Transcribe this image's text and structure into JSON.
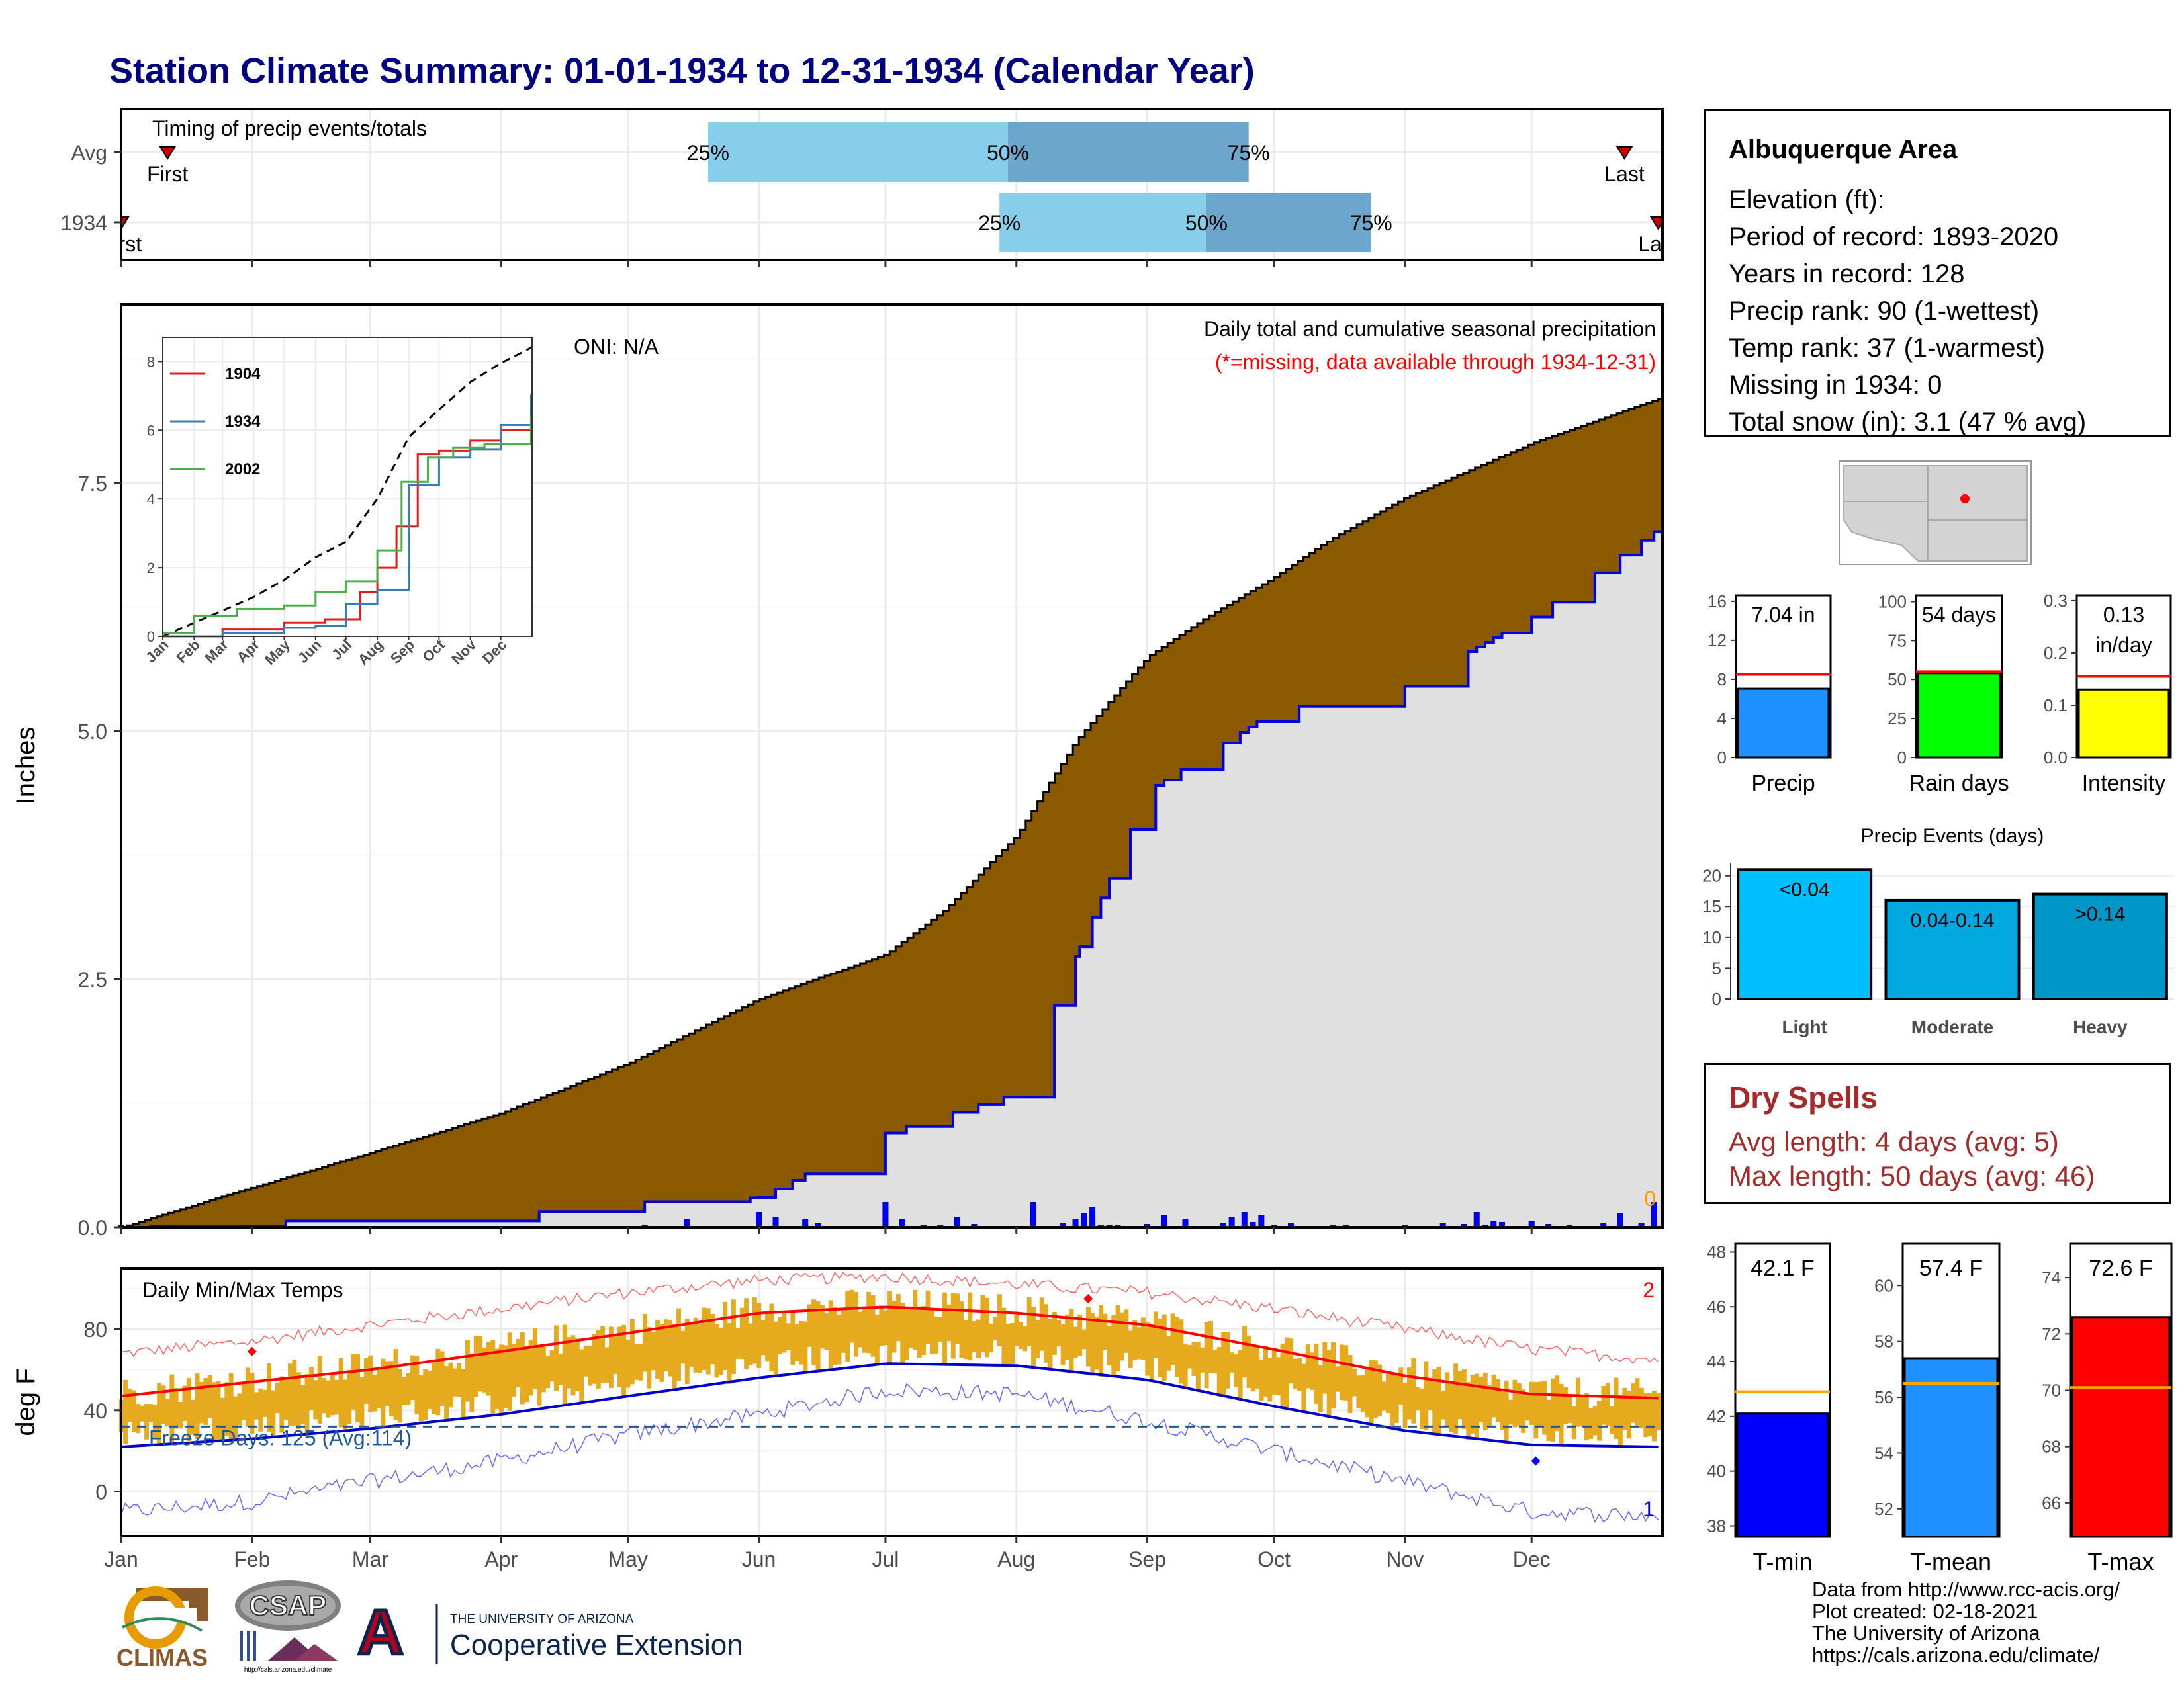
{
  "title": "Station Climate Summary: 01-01-1934 to 12-31-1934 (Calendar Year)",
  "months": [
    "Jan",
    "Feb",
    "Mar",
    "Apr",
    "May",
    "Jun",
    "Jul",
    "Aug",
    "Sep",
    "Oct",
    "Nov",
    "Dec"
  ],
  "timing": {
    "label": "Timing of precip events/totals",
    "rows": [
      "Avg",
      "1934"
    ],
    "avg": {
      "first_label": "First",
      "last_label": "Last",
      "p25": "25%",
      "p50": "50%",
      "p75": "75%",
      "first_date": "1934-01-12",
      "last_date": "1934-12-23",
      "p25_date": "1934-05-20",
      "p50_date": "1934-07-30",
      "p75_date": "1934-09-25"
    },
    "year": {
      "first_label": "First",
      "last_label": "Last",
      "p25": "25%",
      "p50": "50%",
      "p75": "75%",
      "first_date": "1934-01-01",
      "last_date": "1934-12-31",
      "p25_date": "1934-07-28",
      "p50_date": "1934-09-15",
      "p75_date": "1934-10-24"
    }
  },
  "precip_panel": {
    "ylabel": "Inches",
    "yticks": [
      "0.0",
      "2.5",
      "5.0",
      "7.5"
    ],
    "oni": "ONI: N/A",
    "legend_line1": "Daily total and cumulative seasonal precipitation",
    "legend_line2": "(*=missing, data available through 1934-12-31)",
    "missing_count": "0"
  },
  "inset": {
    "yticks": [
      "0",
      "2",
      "4",
      "6",
      "8"
    ],
    "xticks": [
      "Jan",
      "Feb",
      "Mar",
      "Apr",
      "May",
      "Jun",
      "Jul",
      "Aug",
      "Sep",
      "Oct",
      "Nov",
      "Dec"
    ],
    "legend": [
      "1904",
      "1934",
      "2002"
    ]
  },
  "temp_panel": {
    "ylabel": "deg F",
    "yticks": [
      "0",
      "40",
      "80"
    ],
    "title": "Daily Min/Max Temps",
    "freeze": "Freeze Days: 125 (Avg:114)",
    "record_high_count": "2",
    "record_low_count": "1"
  },
  "info": {
    "title": "Albuquerque Area",
    "lines": [
      "Elevation (ft):",
      "Period of record: 1893-2020",
      "Years in record: 128",
      "Precip rank: 90 (1-wettest)",
      "Temp rank: 37 (1-warmest)",
      "Missing in 1934: 0",
      "Total snow (in): 3.1 (47 % avg)"
    ]
  },
  "summary_bars": [
    {
      "name": "Precip",
      "value_label": "7.04 in",
      "yticks": [
        "0",
        "4",
        "8",
        "12",
        "16"
      ],
      "value": 7.04,
      "avg": 8.5,
      "max": 16.6,
      "color": "#1e90ff"
    },
    {
      "name": "Rain days",
      "value_label": "54 days",
      "yticks": [
        "0",
        "25",
        "50",
        "75",
        "100"
      ],
      "value": 54,
      "avg": 55,
      "max": 104,
      "color": "#00ff00"
    },
    {
      "name": "Intensity",
      "value_label": "0.13",
      "value_label2": "in/day",
      "yticks": [
        "0.0",
        "0.1",
        "0.2",
        "0.3"
      ],
      "value": 0.13,
      "avg": 0.155,
      "max": 0.31,
      "color": "#ffff00"
    }
  ],
  "precip_events": {
    "title": "Precip Events (days)",
    "categories": [
      "Light",
      "Moderate",
      "Heavy"
    ],
    "labels": [
      "<0.04",
      "0.04-0.14",
      ">0.14"
    ],
    "values": [
      21,
      16,
      17
    ],
    "yticks": [
      "0",
      "5",
      "10",
      "15",
      "20"
    ],
    "colors": [
      "#00bfff",
      "#00a8e0",
      "#0096c8"
    ]
  },
  "dry_spells": {
    "title": "Dry Spells",
    "line1": "Avg length: 4 days (avg: 5)",
    "line2": "Max length: 50 days (avg: 46)"
  },
  "temp_bars": [
    {
      "name": "T-min",
      "value_label": "42.1 F",
      "yticks": [
        "38",
        "40",
        "42",
        "44",
        "46",
        "48"
      ],
      "ylim": [
        37.6,
        48.3
      ],
      "value": 42.1,
      "avg": 42.9,
      "color": "#0000ff"
    },
    {
      "name": "T-mean",
      "value_label": "57.4 F",
      "yticks": [
        "52",
        "54",
        "56",
        "58",
        "60"
      ],
      "ylim": [
        51.0,
        61.5
      ],
      "value": 57.4,
      "avg": 56.5,
      "color": "#1e90ff"
    },
    {
      "name": "T-max",
      "value_label": "72.6 F",
      "yticks": [
        "66",
        "68",
        "70",
        "72",
        "74"
      ],
      "ylim": [
        64.8,
        75.2
      ],
      "value": 72.6,
      "avg": 70.1,
      "color": "#ff0000"
    }
  ],
  "credits": [
    "Data from http://www.rcc-acis.org/",
    "Plot created: 02-18-2021",
    "The University of Arizona",
    "https://cals.arizona.edu/climate/"
  ],
  "logos": {
    "climas": "CLIMAS",
    "csap": "CSAP",
    "csap_url": "http://cals.arizona.edu/climate",
    "ua_line1": "THE UNIVERSITY OF ARIZONA",
    "ua_line2": "Cooperative Extension",
    "ua_letter": "A"
  },
  "chart_data": [
    {
      "type": "area",
      "name": "cumulative precip",
      "xlabel": "",
      "ylabel": "Inches",
      "ylim": [
        0,
        9.3
      ],
      "avg_cumulative": {
        "x": [
          "1934-01-01",
          "1934-02-01",
          "1934-03-01",
          "1934-04-01",
          "1934-05-01",
          "1934-06-01",
          "1934-07-01",
          "1934-07-15",
          "1934-08-01",
          "1934-08-15",
          "1934-09-01",
          "1934-09-15",
          "1934-10-01",
          "1934-10-15",
          "1934-11-01",
          "1934-12-01",
          "1934-12-31"
        ],
        "y": [
          0,
          0.4,
          0.75,
          1.15,
          1.65,
          2.3,
          2.75,
          3.2,
          3.95,
          4.9,
          5.75,
          6.15,
          6.55,
          6.95,
          7.35,
          7.9,
          8.35
        ]
      },
      "year_cumulative": {
        "x": [
          "1934-01-01",
          "1934-02-01",
          "1934-03-01",
          "1934-04-01",
          "1934-05-01",
          "1934-06-01",
          "1934-07-01",
          "1934-08-01",
          "1934-09-01",
          "1934-10-01",
          "1934-11-01",
          "1934-12-01",
          "1934-12-31"
        ],
        "y": [
          0,
          0.05,
          0.1,
          0.12,
          0.25,
          0.3,
          0.95,
          1.35,
          4.4,
          5.2,
          5.45,
          6.15,
          7.04
        ]
      },
      "daily_precip": {
        "x": [
          "1934-01-01",
          "1934-02-05",
          "1934-03-05",
          "1934-04-05",
          "1934-05-05",
          "1934-05-15",
          "1934-06-01",
          "1934-06-05",
          "1934-06-12",
          "1934-06-15",
          "1934-07-01",
          "1934-07-05",
          "1934-07-10",
          "1934-07-14",
          "1934-07-18",
          "1934-07-22",
          "1934-07-27",
          "1934-08-05",
          "1934-08-12",
          "1934-08-15",
          "1934-08-17",
          "1934-08-19",
          "1934-08-21",
          "1934-08-23",
          "1934-08-25",
          "1934-09-01",
          "1934-09-05",
          "1934-09-10",
          "1934-09-19",
          "1934-09-21",
          "1934-09-24",
          "1934-09-26",
          "1934-09-28",
          "1934-10-01",
          "1934-10-05",
          "1934-10-15",
          "1934-10-18",
          "1934-11-01",
          "1934-11-10",
          "1934-11-15",
          "1934-11-18",
          "1934-11-20",
          "1934-11-22",
          "1934-11-24",
          "1934-12-01",
          "1934-12-05",
          "1934-12-10",
          "1934-12-18",
          "1934-12-22",
          "1934-12-27",
          "1934-12-30"
        ],
        "y": [
          0.02,
          0.02,
          0.01,
          0.01,
          0.02,
          0.08,
          0.15,
          0.1,
          0.08,
          0.04,
          0.25,
          0.08,
          0.02,
          0.02,
          0.1,
          0.03,
          0.01,
          0.25,
          0.04,
          0.08,
          0.14,
          0.2,
          0.02,
          0.02,
          0.02,
          0.03,
          0.12,
          0.08,
          0.04,
          0.1,
          0.15,
          0.05,
          0.12,
          0.02,
          0.04,
          0.02,
          0.02,
          0.02,
          0.04,
          0.03,
          0.15,
          0.02,
          0.06,
          0.05,
          0.06,
          0.03,
          0.02,
          0.04,
          0.14,
          0.04,
          0.25
        ]
      }
    },
    {
      "type": "line",
      "name": "inset cumulative comparison",
      "ylim": [
        0,
        8.7
      ],
      "series": [
        {
          "name": "avg",
          "x": [
            "1934-01-01",
            "1934-02-01",
            "1934-03-01",
            "1934-04-01",
            "1934-05-01",
            "1934-06-01",
            "1934-07-01",
            "1934-08-01",
            "1934-09-01",
            "1934-10-01",
            "1934-11-01",
            "1934-12-01",
            "1934-12-31"
          ],
          "y": [
            0,
            0.4,
            0.75,
            1.15,
            1.65,
            2.3,
            2.75,
            4.0,
            5.8,
            6.6,
            7.4,
            7.95,
            8.4
          ]
        },
        {
          "name": "1904",
          "x": [
            "1934-01-01",
            "1934-03-01",
            "1934-05-01",
            "1934-06-10",
            "1934-07-15",
            "1934-08-01",
            "1934-08-20",
            "1934-09-10",
            "1934-10-01",
            "1934-11-01",
            "1934-12-01",
            "1934-12-31"
          ],
          "y": [
            0,
            0.2,
            0.4,
            0.5,
            1.3,
            2.0,
            3.2,
            5.3,
            5.4,
            5.7,
            6.0,
            6.0
          ]
        },
        {
          "name": "1934",
          "x": [
            "1934-01-01",
            "1934-03-01",
            "1934-05-01",
            "1934-06-01",
            "1934-07-01",
            "1934-08-01",
            "1934-09-01",
            "1934-10-01",
            "1934-11-01",
            "1934-12-01",
            "1934-12-31"
          ],
          "y": [
            0,
            0.1,
            0.25,
            0.3,
            0.95,
            1.35,
            4.4,
            5.2,
            5.45,
            6.15,
            7.04
          ]
        },
        {
          "name": "2002",
          "x": [
            "1934-01-01",
            "1934-02-01",
            "1934-03-15",
            "1934-05-01",
            "1934-06-01",
            "1934-07-01",
            "1934-08-01",
            "1934-08-25",
            "1934-09-20",
            "1934-10-15",
            "1934-11-15",
            "1934-12-31"
          ],
          "y": [
            0.1,
            0.6,
            0.8,
            0.9,
            1.3,
            1.6,
            2.5,
            4.5,
            5.2,
            5.5,
            5.6,
            6.4
          ]
        }
      ]
    },
    {
      "type": "line",
      "name": "daily temps",
      "ylabel": "deg F",
      "ylim": [
        -22,
        110
      ],
      "avg_max": {
        "x": [
          1,
          32,
          60,
          91,
          121,
          152,
          182,
          213,
          244,
          274,
          305,
          335,
          365
        ],
        "y": [
          47,
          54,
          60,
          69,
          78,
          88,
          91,
          88,
          82,
          70,
          57,
          48,
          46
        ]
      },
      "avg_min": {
        "x": [
          1,
          32,
          60,
          91,
          121,
          152,
          182,
          213,
          244,
          274,
          305,
          335,
          365
        ],
        "y": [
          22,
          26,
          31,
          38,
          47,
          56,
          63,
          62,
          55,
          42,
          30,
          23,
          22
        ]
      },
      "record_max": {
        "x": [
          1,
          32,
          60,
          91,
          121,
          152,
          182,
          213,
          244,
          274,
          305,
          335,
          365
        ],
        "y": [
          68,
          74,
          82,
          90,
          98,
          104,
          106,
          102,
          98,
          90,
          80,
          70,
          65
        ]
      },
      "record_min": {
        "x": [
          1,
          32,
          60,
          91,
          121,
          152,
          182,
          213,
          244,
          274,
          305,
          335,
          365
        ],
        "y": [
          -10,
          -5,
          5,
          15,
          28,
          38,
          50,
          48,
          35,
          20,
          5,
          -10,
          -12
        ]
      },
      "freeze_line": 32,
      "record_high": {
        "x": [
          32,
          230
        ],
        "y": [
          69,
          95
        ]
      },
      "record_low": {
        "x": [
          336
        ],
        "y": [
          15
        ]
      }
    }
  ]
}
